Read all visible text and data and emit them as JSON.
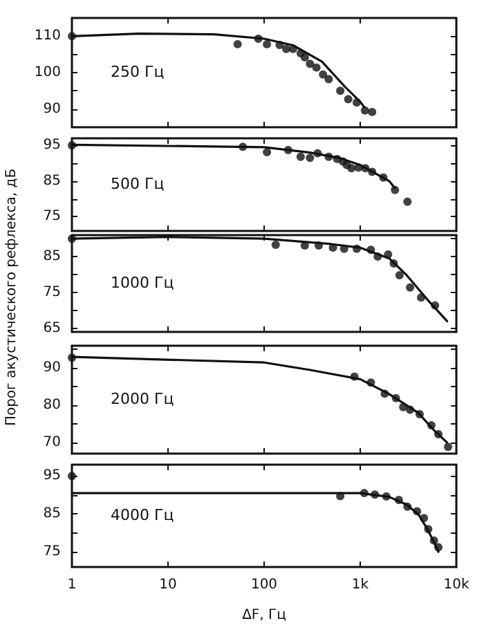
{
  "chart_data": [
    {
      "type": "scatter",
      "annotations": [
        "250 Гц"
      ],
      "xlim": [
        1,
        10000
      ],
      "xticks": [
        {
          "value": 1,
          "label": null
        },
        {
          "value": 10,
          "label": null
        },
        {
          "value": 100,
          "label": null
        },
        {
          "value": 1000,
          "label": null
        },
        {
          "value": 10000,
          "label": null
        }
      ],
      "log": "x",
      "ylim": [
        85,
        115
      ],
      "yticks": [
        90,
        {
          "value": 95,
          "label": null
        },
        100,
        {
          "value": 105,
          "label": null
        },
        110
      ],
      "tick_labels": "y",
      "series": [
        {
          "type": "scatter",
          "marker": "circle",
          "color": "#111111",
          "x": [
            1,
            53,
            87,
            107,
            145,
            170,
            200,
            240,
            265,
            300,
            350,
            410,
            470,
            620,
            750,
            920,
            1120,
            1330
          ],
          "values": [
            110,
            107.8,
            109.3,
            107.8,
            107.6,
            106.5,
            106.5,
            105.3,
            104.2,
            102.4,
            101.4,
            99.5,
            98.2,
            95,
            92.7,
            91.8,
            89.6,
            89.2
          ]
        },
        {
          "type": "line",
          "color": "#111111",
          "line_style": "solid",
          "x": [
            1,
            5,
            30,
            100,
            200,
            400,
            700,
            1000,
            1100
          ],
          "values": [
            110,
            110.7,
            110.5,
            109.3,
            107.5,
            103,
            96,
            92,
            90.5
          ]
        }
      ]
    },
    {
      "type": "scatter",
      "annotations": [
        "500 Гц"
      ],
      "xlim": [
        1,
        10000
      ],
      "xticks": [
        {
          "value": 1,
          "label": null
        },
        {
          "value": 10,
          "label": null
        },
        {
          "value": 100,
          "label": null
        },
        {
          "value": 1000,
          "label": null
        },
        {
          "value": 10000,
          "label": null
        }
      ],
      "log": "x",
      "ylim": [
        71,
        97
      ],
      "yticks": [
        75,
        {
          "value": 80,
          "label": null
        },
        85,
        {
          "value": 90,
          "label": null
        },
        95
      ],
      "tick_labels": "y",
      "series": [
        {
          "type": "scatter",
          "marker": "circle",
          "color": "#111111",
          "x": [
            1,
            60,
            107,
            178,
            240,
            300,
            360,
            470,
            575,
            660,
            725,
            810,
            960,
            1130,
            1330,
            1740,
            2300,
            3100
          ],
          "values": [
            95,
            94.6,
            93.1,
            93.7,
            91.8,
            91.5,
            92.8,
            91.8,
            91.2,
            90.5,
            89.5,
            88.6,
            88.8,
            88.6,
            87.6,
            86,
            82.5,
            79.2
          ]
        },
        {
          "type": "line",
          "color": "#111111",
          "line_style": "solid",
          "x": [
            1,
            100,
            300,
            600,
            1000,
            2000,
            2300
          ],
          "values": [
            95.2,
            94.5,
            93,
            91.5,
            89.5,
            85,
            83
          ]
        }
      ]
    },
    {
      "type": "scatter",
      "ylabel": "Порог акустического рефлекса, дБ",
      "annotations": [
        "1000 Гц"
      ],
      "xlim": [
        1,
        10000
      ],
      "xticks": [
        {
          "value": 1,
          "label": null
        },
        {
          "value": 10,
          "label": null
        },
        {
          "value": 100,
          "label": null
        },
        {
          "value": 1000,
          "label": null
        },
        {
          "value": 10000,
          "label": null
        }
      ],
      "log": "x",
      "ylim": [
        64,
        91
      ],
      "yticks": [
        65,
        {
          "value": 70,
          "label": null
        },
        75,
        {
          "value": 80,
          "label": null
        },
        85,
        {
          "value": 90,
          "label": null
        }
      ],
      "tick_labels": "y",
      "series": [
        {
          "type": "scatter",
          "marker": "circle",
          "color": "#111111",
          "x": [
            1,
            132,
            265,
            370,
            520,
            680,
            920,
            1290,
            1520,
            1950,
            2230,
            2560,
            3300,
            4300,
            6000
          ],
          "values": [
            90,
            88.3,
            88.1,
            88.1,
            87.5,
            87.2,
            87.2,
            86.9,
            85,
            85.6,
            83.1,
            79.8,
            76.4,
            73.6,
            71.4
          ]
        },
        {
          "type": "line",
          "color": "#111111",
          "line_style": "solid",
          "x": [
            1,
            10,
            100,
            500,
            1000,
            2000,
            3000,
            5000,
            8000
          ],
          "values": [
            90,
            90.5,
            90,
            88.5,
            87.5,
            84.5,
            80,
            73,
            67
          ]
        }
      ]
    },
    {
      "type": "scatter",
      "annotations": [
        "2000 Гц"
      ],
      "xlim": [
        1,
        10000
      ],
      "xticks": [
        {
          "value": 1,
          "label": null
        },
        {
          "value": 10,
          "label": null
        },
        {
          "value": 100,
          "label": null
        },
        {
          "value": 1000,
          "label": null
        },
        {
          "value": 10000,
          "label": null
        }
      ],
      "log": "x",
      "ylim": [
        67,
        96
      ],
      "yticks": [
        70,
        {
          "value": 75,
          "label": null
        },
        80,
        {
          "value": 85,
          "label": null
        },
        90,
        {
          "value": 95,
          "label": null
        }
      ],
      "tick_labels": "y",
      "series": [
        {
          "type": "scatter",
          "marker": "circle",
          "color": "#111111",
          "x": [
            1,
            870,
            1290,
            1800,
            2350,
            2800,
            3300,
            4150,
            5500,
            6500,
            8200
          ],
          "values": [
            92.8,
            87.7,
            86.1,
            83.1,
            81.9,
            79.5,
            78.8,
            77.6,
            74.6,
            72.2,
            68.8
          ]
        },
        {
          "type": "line",
          "color": "#111111",
          "line_style": "solid",
          "x": [
            1,
            100,
            300,
            1000,
            2000,
            4000,
            6000,
            8000
          ],
          "values": [
            93,
            91.5,
            89.5,
            87,
            83,
            78,
            73,
            70
          ]
        }
      ]
    },
    {
      "type": "scatter",
      "xlabel": "ΔF, Гц",
      "annotations": [
        "4000 Гц"
      ],
      "xlim": [
        1,
        10000
      ],
      "xticks": [
        1,
        10,
        100,
        {
          "value": 1000,
          "label": "1k"
        },
        {
          "value": 10000,
          "label": "10k"
        }
      ],
      "log": "x",
      "ylim": [
        71,
        98
      ],
      "yticks": [
        75,
        {
          "value": 80,
          "label": null
        },
        85,
        {
          "value": 90,
          "label": null
        },
        95
      ],
      "series": [
        {
          "type": "scatter",
          "marker": "circle",
          "color": "#111111",
          "x": [
            1,
            620,
            1100,
            1420,
            1870,
            2520,
            3100,
            3900,
            4600,
            5100,
            5850,
            6500
          ],
          "values": [
            95,
            89.7,
            90.5,
            90.1,
            89.6,
            88.7,
            86.9,
            85.7,
            83.9,
            81,
            78,
            76.2
          ]
        },
        {
          "type": "line",
          "color": "#111111",
          "line_style": "solid",
          "x": [
            1,
            1000,
            2000,
            3000,
            4000,
            5000,
            6000,
            6500
          ],
          "values": [
            90.5,
            90.5,
            89.5,
            87.5,
            85,
            81,
            77,
            75
          ]
        }
      ]
    }
  ]
}
